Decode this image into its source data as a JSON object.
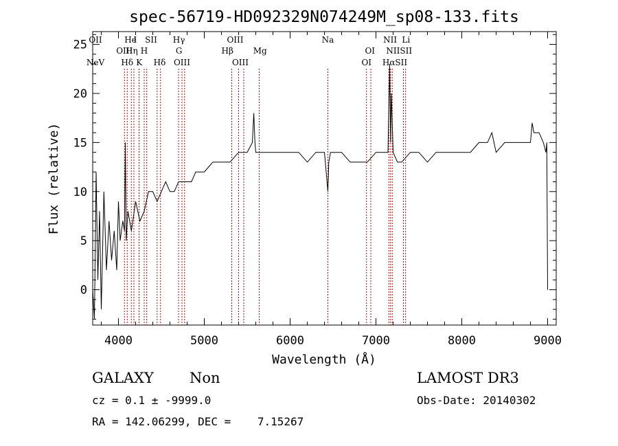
{
  "chart_data": {
    "type": "line",
    "title": "spec-56719-HD092329N074249M_sp08-133.fits",
    "xlabel": "Wavelength (Å)",
    "ylabel": "Flux (relative)",
    "xlim": [
      3700,
      9100
    ],
    "ylim": [
      -3.6,
      26.3
    ],
    "x_ticks": [
      4000,
      5000,
      6000,
      7000,
      8000,
      9000
    ],
    "y_ticks": [
      0,
      5,
      10,
      15,
      20,
      25
    ],
    "grid": false,
    "series": [
      {
        "name": "flux",
        "x": [
          3700,
          3720,
          3740,
          3760,
          3780,
          3800,
          3830,
          3860,
          3890,
          3920,
          3950,
          3980,
          4000,
          4020,
          4050,
          4070,
          4080,
          4090,
          4110,
          4150,
          4200,
          4250,
          4300,
          4350,
          4400,
          4450,
          4500,
          4550,
          4600,
          4650,
          4700,
          4750,
          4800,
          4850,
          4900,
          4950,
          5000,
          5100,
          5200,
          5300,
          5400,
          5500,
          5560,
          5577,
          5590,
          5600,
          5650,
          5700,
          5800,
          5900,
          6000,
          6100,
          6200,
          6300,
          6400,
          6440,
          6450,
          6470,
          6500,
          6600,
          6700,
          6800,
          6900,
          7000,
          7100,
          7140,
          7160,
          7170,
          7180,
          7200,
          7250,
          7300,
          7400,
          7500,
          7600,
          7700,
          7800,
          7900,
          8000,
          8100,
          8200,
          8300,
          8350,
          8400,
          8500,
          8600,
          8700,
          8800,
          8820,
          8840,
          8900,
          8950,
          8980,
          8990,
          9000
        ],
        "y": [
          0,
          -3,
          12,
          1,
          8,
          -2,
          10,
          2,
          7,
          3,
          6,
          2,
          9,
          5,
          7,
          6,
          15,
          5,
          8,
          6,
          9,
          7,
          8,
          10,
          10,
          9,
          10,
          11,
          10,
          10,
          11,
          11,
          11,
          11,
          12,
          12,
          12,
          13,
          13,
          13,
          14,
          14,
          15,
          18,
          15,
          14,
          14,
          14,
          14,
          14,
          14,
          14,
          13,
          14,
          14,
          10,
          13,
          14,
          14,
          14,
          13,
          13,
          13,
          14,
          14,
          14,
          23,
          15,
          20,
          14,
          13,
          13,
          14,
          14,
          13,
          14,
          14,
          14,
          14,
          14,
          15,
          15,
          16,
          14,
          15,
          15,
          15,
          15,
          17,
          16,
          16,
          15,
          14,
          15,
          0
        ]
      }
    ],
    "line_markers": [
      {
        "label": "NeV",
        "x": 3426,
        "row": 3
      },
      {
        "label": "OII",
        "x": 3727,
        "row": 1
      },
      {
        "label": "OIII",
        "x": 4070,
        "row": 2
      },
      {
        "label": "Hδ",
        "x": 4102,
        "row": 3
      },
      {
        "label": "He",
        "x": 4140,
        "row": 1
      },
      {
        "label": "Hη",
        "x": 4155,
        "row": 2
      },
      {
        "label": "I",
        "x": 4195,
        "row": 1
      },
      {
        "label": "K",
        "x": 4242,
        "row": 3
      },
      {
        "label": "H",
        "x": 4300,
        "row": 2
      },
      {
        "label": "SII",
        "x": 4380,
        "row": 1
      },
      {
        "label": "Hδ",
        "x": 4480,
        "row": 3
      },
      {
        "label": "Hγ",
        "x": 4705,
        "row": 1
      },
      {
        "label": "G",
        "x": 4705,
        "row": 2
      },
      {
        "label": "OIII",
        "x": 4740,
        "row": 3
      },
      {
        "label": "OIII",
        "x": 5360,
        "row": 1
      },
      {
        "label": "Hβ",
        "x": 5270,
        "row": 2
      },
      {
        "label": "OIII",
        "x": 5420,
        "row": 3
      },
      {
        "label": "Mg",
        "x": 5650,
        "row": 2
      },
      {
        "label": "Na",
        "x": 6440,
        "row": 1
      },
      {
        "label": "OI",
        "x": 6930,
        "row": 2
      },
      {
        "label": "OI",
        "x": 6890,
        "row": 3
      },
      {
        "label": "NII",
        "x": 7165,
        "row": 1
      },
      {
        "label": "NIISII",
        "x": 7270,
        "row": 2
      },
      {
        "label": "HαSII",
        "x": 7220,
        "row": 3
      },
      {
        "label": "Li",
        "x": 7350,
        "row": 1
      }
    ],
    "dotted_lines_x": [
      4070,
      4102,
      4150,
      4180,
      4240,
      4300,
      4330,
      4450,
      4490,
      4700,
      4740,
      4770,
      5320,
      5400,
      5460,
      5640,
      6440,
      6890,
      6940,
      7150,
      7170,
      7190,
      7320,
      7345
    ]
  },
  "info": {
    "object_type": "GALAXY",
    "subclass": "Non",
    "survey": "LAMOST DR3",
    "cz": "cz = 0.1 ± -9999.0",
    "obs_date": "Obs-Date: 20140302",
    "coords": "RA = 142.06299, DEC =    7.15267"
  }
}
